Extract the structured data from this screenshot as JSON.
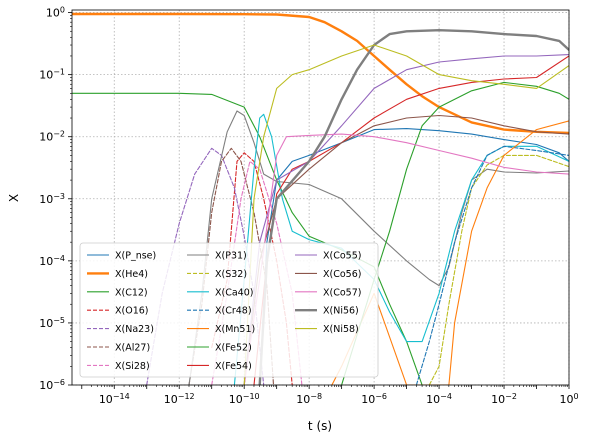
{
  "chart_data": {
    "type": "line",
    "xlabel": "t (s)",
    "ylabel": "X",
    "xscale": "log",
    "yscale": "log",
    "xlim": [
      5e-16,
      1
    ],
    "ylim": [
      1e-06,
      1.1
    ],
    "grid": true,
    "legend_placement": "lower-left",
    "x_ticks": [
      {
        "value": 1e-14,
        "label": "10^-14"
      },
      {
        "value": 1e-12,
        "label": "10^-12"
      },
      {
        "value": 1e-10,
        "label": "10^-10"
      },
      {
        "value": 1e-08,
        "label": "10^-8"
      },
      {
        "value": 1e-06,
        "label": "10^-6"
      },
      {
        "value": 0.0001,
        "label": "10^-4"
      },
      {
        "value": 0.01,
        "label": "10^-2"
      },
      {
        "value": 1,
        "label": "10^0"
      }
    ],
    "y_ticks": [
      {
        "value": 1e-06,
        "label": "10^-6"
      },
      {
        "value": 1e-05,
        "label": "10^-5"
      },
      {
        "value": 0.0001,
        "label": "10^-4"
      },
      {
        "value": 0.001,
        "label": "10^-3"
      },
      {
        "value": 0.01,
        "label": "10^-2"
      },
      {
        "value": 0.1,
        "label": "10^-1"
      },
      {
        "value": 1,
        "label": "10^0"
      }
    ],
    "series": [
      {
        "name": "X(P_nse)",
        "color": "#1f77b4",
        "dash": "solid",
        "bold": false,
        "points": [
          [
            3e-10,
            1e-06
          ],
          [
            5e-10,
            0.0002
          ],
          [
            1e-09,
            0.002
          ],
          [
            3e-09,
            0.004
          ],
          [
            1e-08,
            0.005
          ],
          [
            1e-07,
            0.008
          ],
          [
            1e-06,
            0.013
          ],
          [
            1e-05,
            0.0135
          ],
          [
            0.0001,
            0.0125
          ],
          [
            0.001,
            0.011
          ],
          [
            0.01,
            0.009
          ],
          [
            0.1,
            0.0075
          ],
          [
            0.5,
            0.0055
          ],
          [
            1,
            0.004
          ]
        ]
      },
      {
        "name": "X(He4)",
        "color": "#ff7f0e",
        "dash": "solid",
        "bold": true,
        "points": [
          [
            5e-16,
            0.95
          ],
          [
            1e-12,
            0.95
          ],
          [
            1e-10,
            0.94
          ],
          [
            1e-09,
            0.93
          ],
          [
            1e-08,
            0.85
          ],
          [
            3e-08,
            0.7
          ],
          [
            1e-07,
            0.5
          ],
          [
            3e-07,
            0.35
          ],
          [
            1e-06,
            0.2
          ],
          [
            3e-06,
            0.12
          ],
          [
            1e-05,
            0.07
          ],
          [
            3e-05,
            0.045
          ],
          [
            0.0001,
            0.03
          ],
          [
            0.001,
            0.017
          ],
          [
            0.01,
            0.013
          ],
          [
            0.1,
            0.012
          ],
          [
            1,
            0.0115
          ]
        ]
      },
      {
        "name": "X(C12)",
        "color": "#2ca02c",
        "dash": "solid",
        "bold": false,
        "points": [
          [
            5e-16,
            0.05
          ],
          [
            1e-12,
            0.05
          ],
          [
            1e-11,
            0.048
          ],
          [
            1e-10,
            0.03
          ],
          [
            3e-10,
            0.01
          ],
          [
            1e-09,
            0.002
          ],
          [
            3e-09,
            0.0006
          ],
          [
            1e-08,
            0.00025
          ],
          [
            1e-07,
            0.00015
          ],
          [
            1e-06,
            8e-05
          ],
          [
            3e-06,
            2e-05
          ],
          [
            1e-05,
            5e-06
          ],
          [
            3e-05,
            1e-06
          ]
        ]
      },
      {
        "name": "X(O16)",
        "color": "#d62728",
        "dash": "dashed",
        "bold": false,
        "points": [
          [
            1e-11,
            4e-06
          ],
          [
            3e-11,
            5e-05
          ],
          [
            6e-11,
            0.004
          ],
          [
            1e-10,
            0.0055
          ],
          [
            2e-10,
            0.004
          ],
          [
            4e-10,
            0.001
          ],
          [
            1e-09,
            0.0001
          ],
          [
            2e-09,
            1e-05
          ],
          [
            3e-09,
            1e-06
          ]
        ]
      },
      {
        "name": "X(Na23)",
        "color": "#9467bd",
        "dash": "dashed",
        "bold": false,
        "points": [
          [
            1e-13,
            1e-06
          ],
          [
            3e-13,
            3e-05
          ],
          [
            1e-12,
            0.0004
          ],
          [
            3e-12,
            0.0025
          ],
          [
            1e-11,
            0.0065
          ],
          [
            2e-11,
            0.005
          ],
          [
            5e-11,
            0.0015
          ],
          [
            1e-10,
            0.00025
          ],
          [
            2e-10,
            3e-05
          ],
          [
            4e-10,
            1e-06
          ]
        ]
      },
      {
        "name": "X(Al27)",
        "color": "#8c564b",
        "dash": "dashed",
        "bold": false,
        "points": [
          [
            2e-12,
            1e-06
          ],
          [
            5e-12,
            2e-05
          ],
          [
            1e-11,
            0.0006
          ],
          [
            2e-11,
            0.004
          ],
          [
            4e-11,
            0.0065
          ],
          [
            8e-11,
            0.004
          ],
          [
            2e-10,
            0.0006
          ],
          [
            5e-10,
            4e-05
          ],
          [
            8e-10,
            1e-06
          ]
        ]
      },
      {
        "name": "X(Si28)",
        "color": "#e377c2",
        "dash": "dashed",
        "bold": false,
        "points": [
          [
            1e-11,
            1e-06
          ],
          [
            3e-11,
            3e-05
          ],
          [
            8e-11,
            0.001
          ],
          [
            1.5e-10,
            0.004
          ],
          [
            3e-10,
            0.003
          ],
          [
            1e-09,
            0.0004
          ],
          [
            3e-09,
            3e-05
          ],
          [
            6e-09,
            1e-06
          ]
        ]
      },
      {
        "name": "X(P31)",
        "color": "#7f7f7f",
        "dash": "solid",
        "bold": false,
        "points": [
          [
            2e-12,
            1e-06
          ],
          [
            5e-12,
            3e-05
          ],
          [
            1e-11,
            0.001
          ],
          [
            3e-11,
            0.012
          ],
          [
            6e-11,
            0.026
          ],
          [
            1e-10,
            0.022
          ],
          [
            2e-10,
            0.008
          ],
          [
            4e-10,
            0.0025
          ],
          [
            1e-09,
            0.0019
          ],
          [
            1e-08,
            0.0017
          ],
          [
            1e-07,
            0.001
          ],
          [
            1e-06,
            0.0003
          ],
          [
            1e-05,
            0.0001
          ],
          [
            5e-05,
            5e-05
          ],
          [
            0.0001,
            4e-05
          ],
          [
            0.0002,
            8e-05
          ],
          [
            0.0005,
            0.0006
          ],
          [
            0.001,
            0.002
          ],
          [
            0.003,
            0.003
          ],
          [
            0.01,
            0.0027
          ],
          [
            0.1,
            0.0026
          ],
          [
            1,
            0.0028
          ]
        ]
      },
      {
        "name": "X(S32)",
        "color": "#bcbd22",
        "dash": "dashed",
        "bold": false,
        "points": [
          [
            5e-05,
            1e-06
          ],
          [
            0.0001,
            2e-06
          ],
          [
            0.0002,
            2e-05
          ],
          [
            0.0005,
            0.0003
          ],
          [
            0.001,
            0.0015
          ],
          [
            0.003,
            0.0035
          ],
          [
            0.01,
            0.005
          ],
          [
            0.1,
            0.005
          ],
          [
            1,
            0.0033
          ]
        ]
      },
      {
        "name": "X(Ca40)",
        "color": "#17becf",
        "dash": "solid",
        "bold": false,
        "points": [
          [
            5e-11,
            1e-06
          ],
          [
            1e-10,
            5e-05
          ],
          [
            2e-10,
            0.003
          ],
          [
            3e-10,
            0.02
          ],
          [
            4e-10,
            0.023
          ],
          [
            7e-10,
            0.01
          ],
          [
            1.5e-09,
            0.001
          ],
          [
            3e-09,
            0.0003
          ],
          [
            1e-08,
            0.00022
          ],
          [
            1e-07,
            0.00016
          ],
          [
            1e-06,
            5e-05
          ],
          [
            3e-06,
            1.5e-05
          ],
          [
            1e-05,
            5e-06
          ],
          [
            3e-05,
            5e-06
          ],
          [
            0.0001,
            3e-05
          ],
          [
            0.0003,
            0.0003
          ],
          [
            0.001,
            0.002
          ],
          [
            0.003,
            0.005
          ],
          [
            0.01,
            0.007
          ],
          [
            0.1,
            0.007
          ],
          [
            1,
            0.004
          ]
        ]
      },
      {
        "name": "X(Cr48)",
        "color": "#1f77b4",
        "dash": "dashed",
        "bold": false,
        "points": [
          [
            2e-05,
            1e-06
          ],
          [
            5e-05,
            5e-06
          ],
          [
            0.0001,
            2e-05
          ],
          [
            0.0003,
            0.0002
          ],
          [
            0.001,
            0.0015
          ],
          [
            0.003,
            0.005
          ],
          [
            0.01,
            0.007
          ],
          [
            0.1,
            0.006
          ],
          [
            1,
            0.005
          ]
        ]
      },
      {
        "name": "X(Mn51)",
        "color": "#ff7f0e",
        "dash": "solid",
        "bold": false,
        "points": [
          [
            5e-08,
            1e-06
          ],
          [
            1e-07,
            2e-06
          ],
          [
            1e-06,
            3e-05
          ],
          [
            1e-05,
            1e-06
          ],
          [
            2e-05,
            1e-06
          ],
          [
            5e-05,
            1e-06
          ],
          [
            0.0001,
            1e-06
          ],
          [
            0.0002,
            1e-06
          ],
          [
            0.0003,
            1e-05
          ],
          [
            0.001,
            0.0003
          ],
          [
            0.003,
            0.0015
          ],
          [
            0.01,
            0.005
          ],
          [
            0.1,
            0.013
          ],
          [
            1,
            0.018
          ]
        ]
      },
      {
        "name": "X(Fe52)",
        "color": "#2ca02c",
        "dash": "solid",
        "bold": false,
        "points": [
          [
            1e-07,
            1e-06
          ],
          [
            1e-06,
            5e-05
          ],
          [
            3e-06,
            0.0003
          ],
          [
            1e-05,
            0.003
          ],
          [
            3e-05,
            0.015
          ],
          [
            0.0001,
            0.03
          ],
          [
            0.001,
            0.055
          ],
          [
            0.01,
            0.075
          ],
          [
            0.1,
            0.065
          ],
          [
            0.5,
            0.05
          ],
          [
            1,
            0.04
          ]
        ]
      },
      {
        "name": "X(Fe54)",
        "color": "#d62728",
        "dash": "solid",
        "bold": false,
        "points": [
          [
            2e-10,
            1e-06
          ],
          [
            5e-10,
            0.0001
          ],
          [
            1e-09,
            0.0012
          ],
          [
            3e-09,
            0.003
          ],
          [
            1e-08,
            0.004
          ],
          [
            1e-07,
            0.008
          ],
          [
            1e-06,
            0.02
          ],
          [
            1e-05,
            0.04
          ],
          [
            0.0001,
            0.06
          ],
          [
            0.001,
            0.075
          ],
          [
            0.01,
            0.085
          ],
          [
            0.1,
            0.09
          ],
          [
            1,
            0.2
          ]
        ]
      },
      {
        "name": "X(Co55)",
        "color": "#9467bd",
        "dash": "solid",
        "bold": false,
        "points": [
          [
            1e-10,
            1e-06
          ],
          [
            3e-10,
            0.0002
          ],
          [
            1e-09,
            0.002
          ],
          [
            3e-09,
            0.0028
          ],
          [
            1e-08,
            0.004
          ],
          [
            1e-07,
            0.015
          ],
          [
            1e-06,
            0.06
          ],
          [
            1e-05,
            0.12
          ],
          [
            0.0001,
            0.16
          ],
          [
            0.001,
            0.18
          ],
          [
            0.01,
            0.2
          ],
          [
            0.1,
            0.2
          ],
          [
            1,
            0.21
          ]
        ]
      },
      {
        "name": "X(Co56)",
        "color": "#8c564b",
        "dash": "solid",
        "bold": false,
        "points": [
          [
            1e-10,
            1e-06
          ],
          [
            3e-10,
            0.0001
          ],
          [
            1e-09,
            0.001
          ],
          [
            1e-08,
            0.003
          ],
          [
            1e-07,
            0.008
          ],
          [
            1e-06,
            0.015
          ],
          [
            1e-05,
            0.02
          ],
          [
            0.0001,
            0.022
          ],
          [
            0.001,
            0.02
          ],
          [
            0.01,
            0.015
          ],
          [
            0.1,
            0.012
          ],
          [
            1,
            0.011
          ]
        ]
      },
      {
        "name": "X(Co57)",
        "color": "#e377c2",
        "dash": "solid",
        "bold": false,
        "points": [
          [
            1e-10,
            1e-06
          ],
          [
            3e-10,
            5e-05
          ],
          [
            1e-09,
            0.005
          ],
          [
            2e-09,
            0.01
          ],
          [
            1e-08,
            0.0105
          ],
          [
            1e-07,
            0.011
          ],
          [
            1e-06,
            0.01
          ],
          [
            1e-05,
            0.008
          ],
          [
            0.0001,
            0.006
          ],
          [
            0.001,
            0.0045
          ],
          [
            0.01,
            0.0032
          ],
          [
            0.1,
            0.0027
          ],
          [
            1,
            0.0025
          ]
        ]
      },
      {
        "name": "X(Ni56)",
        "color": "#7f7f7f",
        "dash": "solid",
        "bold": true,
        "points": [
          [
            3e-10,
            1e-06
          ],
          [
            5e-10,
            0.0001
          ],
          [
            1e-09,
            0.001
          ],
          [
            1e-08,
            0.004
          ],
          [
            3e-08,
            0.01
          ],
          [
            1e-07,
            0.04
          ],
          [
            3e-07,
            0.12
          ],
          [
            1e-06,
            0.3
          ],
          [
            3e-06,
            0.45
          ],
          [
            1e-05,
            0.5
          ],
          [
            0.0001,
            0.52
          ],
          [
            0.001,
            0.5
          ],
          [
            0.01,
            0.45
          ],
          [
            0.1,
            0.42
          ],
          [
            0.5,
            0.35
          ],
          [
            1,
            0.25
          ]
        ]
      },
      {
        "name": "X(Ni58)",
        "color": "#bcbd22",
        "dash": "solid",
        "bold": false,
        "points": [
          [
            1e-10,
            1e-06
          ],
          [
            2e-10,
            0.001
          ],
          [
            4e-10,
            0.01
          ],
          [
            1e-09,
            0.06
          ],
          [
            3e-09,
            0.1
          ],
          [
            1e-08,
            0.12
          ],
          [
            1e-07,
            0.2
          ],
          [
            1e-06,
            0.3
          ],
          [
            1e-05,
            0.2
          ],
          [
            0.0001,
            0.1
          ],
          [
            0.001,
            0.08
          ],
          [
            0.01,
            0.07
          ],
          [
            0.1,
            0.06
          ],
          [
            1,
            0.14
          ]
        ]
      }
    ]
  }
}
